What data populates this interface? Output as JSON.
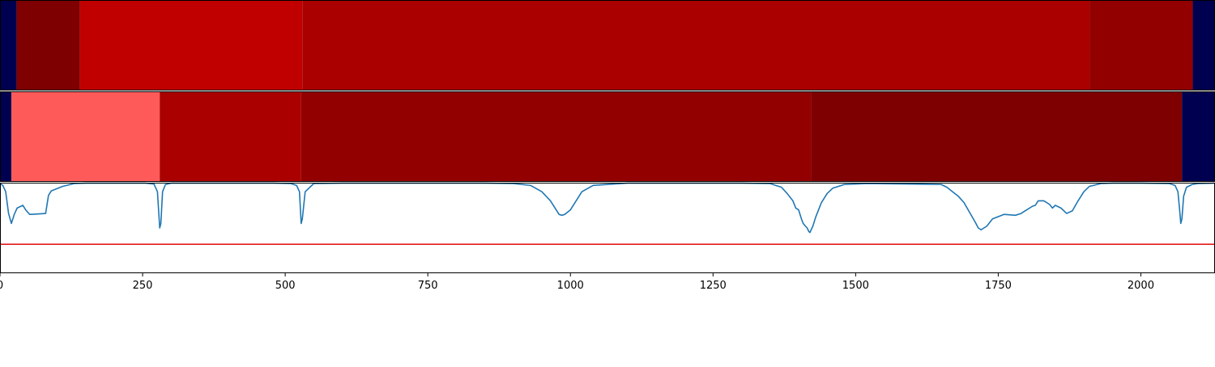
{
  "chart_data": [
    {
      "type": "heatmap",
      "xlim": [
        0,
        2130
      ],
      "colors": {
        "navy": "#000050",
        "maroon": "#7f0000",
        "bright_red": "#c00000",
        "mid_red": "#aa0000",
        "dark_red": "#930000",
        "salmon": "#ff5a5a"
      },
      "segments": [
        {
          "x_start": 0,
          "x_end": 29,
          "color_key": "navy"
        },
        {
          "x_start": 29,
          "x_end": 140,
          "color_key": "maroon"
        },
        {
          "x_start": 140,
          "x_end": 530,
          "color_key": "bright_red"
        },
        {
          "x_start": 530,
          "x_end": 1910,
          "color_key": "mid_red"
        },
        {
          "x_start": 1910,
          "x_end": 2091,
          "color_key": "dark_red"
        },
        {
          "x_start": 2091,
          "x_end": 2130,
          "color_key": "navy"
        }
      ]
    },
    {
      "type": "heatmap",
      "xlim": [
        0,
        2130
      ],
      "segments": [
        {
          "x_start": 0,
          "x_end": 20,
          "color_key": "navy"
        },
        {
          "x_start": 20,
          "x_end": 280,
          "color_key": "salmon"
        },
        {
          "x_start": 280,
          "x_end": 528,
          "color_key": "mid_red"
        },
        {
          "x_start": 528,
          "x_end": 1422,
          "color_key": "dark_red"
        },
        {
          "x_start": 1422,
          "x_end": 2072,
          "color_key": "maroon"
        },
        {
          "x_start": 2072,
          "x_end": 2130,
          "color_key": "navy"
        }
      ]
    },
    {
      "type": "line",
      "xlim": [
        0,
        2130
      ],
      "ylim": [
        0,
        1
      ],
      "grid": false,
      "x_ticks": [
        0,
        250,
        500,
        750,
        1000,
        1250,
        1500,
        1750,
        2000
      ],
      "x_tick_labels": [
        "0",
        "250",
        "500",
        "750",
        "1000",
        "1250",
        "1500",
        "1750",
        "2000"
      ],
      "threshold": {
        "y": 0.32,
        "color": "#e31a1c"
      },
      "series": [
        {
          "color": "#1f77b4",
          "x": [
            0,
            5,
            10,
            15,
            20,
            25,
            30,
            40,
            45,
            52,
            55,
            80,
            85,
            90,
            110,
            130,
            150,
            200,
            255,
            270,
            276,
            280,
            282,
            285,
            290,
            300,
            320,
            400,
            480,
            510,
            520,
            525,
            528,
            530,
            535,
            550,
            600,
            700,
            850,
            900,
            930,
            950,
            965,
            975,
            980,
            985,
            990,
            1000,
            1010,
            1020,
            1040,
            1100,
            1200,
            1300,
            1350,
            1370,
            1380,
            1390,
            1395,
            1400,
            1405,
            1408,
            1412,
            1415,
            1418,
            1420,
            1422,
            1425,
            1430,
            1440,
            1450,
            1460,
            1480,
            1520,
            1600,
            1650,
            1660,
            1670,
            1680,
            1690,
            1700,
            1710,
            1715,
            1720,
            1730,
            1740,
            1760,
            1780,
            1790,
            1800,
            1810,
            1815,
            1820,
            1830,
            1840,
            1845,
            1850,
            1860,
            1870,
            1880,
            1890,
            1900,
            1910,
            1930,
            1950,
            2000,
            2050,
            2060,
            2065,
            2068,
            2070,
            2072,
            2075,
            2080,
            2090,
            2100,
            2130
          ],
          "values": [
            0.99,
            0.97,
            0.9,
            0.66,
            0.55,
            0.65,
            0.72,
            0.75,
            0.7,
            0.65,
            0.65,
            0.66,
            0.86,
            0.91,
            0.96,
            0.99,
            0.995,
            0.995,
            0.995,
            0.985,
            0.9,
            0.5,
            0.55,
            0.9,
            0.98,
            0.995,
            0.995,
            0.995,
            0.995,
            0.99,
            0.97,
            0.9,
            0.55,
            0.6,
            0.9,
            0.99,
            0.995,
            0.995,
            0.995,
            0.99,
            0.97,
            0.9,
            0.8,
            0.7,
            0.65,
            0.64,
            0.65,
            0.7,
            0.8,
            0.9,
            0.97,
            0.995,
            0.995,
            0.995,
            0.99,
            0.95,
            0.88,
            0.8,
            0.72,
            0.7,
            0.6,
            0.55,
            0.52,
            0.5,
            0.46,
            0.45,
            0.48,
            0.52,
            0.62,
            0.78,
            0.88,
            0.94,
            0.98,
            0.99,
            0.985,
            0.98,
            0.95,
            0.9,
            0.85,
            0.78,
            0.67,
            0.56,
            0.5,
            0.48,
            0.52,
            0.6,
            0.65,
            0.64,
            0.66,
            0.7,
            0.74,
            0.75,
            0.8,
            0.8,
            0.76,
            0.72,
            0.75,
            0.72,
            0.66,
            0.69,
            0.8,
            0.9,
            0.96,
            0.99,
            0.995,
            0.995,
            0.99,
            0.97,
            0.9,
            0.7,
            0.55,
            0.6,
            0.85,
            0.95,
            0.98,
            0.99,
            0.995
          ]
        }
      ]
    }
  ]
}
